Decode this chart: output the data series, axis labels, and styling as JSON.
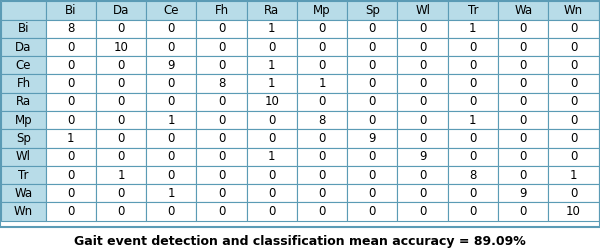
{
  "col_labels": [
    "",
    "Bi",
    "Da",
    "Ce",
    "Fh",
    "Ra",
    "Mp",
    "Sp",
    "Wl",
    "Tr",
    "Wa",
    "Wn"
  ],
  "row_labels": [
    "Bi",
    "Da",
    "Ce",
    "Fh",
    "Ra",
    "Mp",
    "Sp",
    "Wl",
    "Tr",
    "Wa",
    "Wn"
  ],
  "matrix": [
    [
      8,
      0,
      0,
      0,
      1,
      0,
      0,
      0,
      1,
      0,
      0
    ],
    [
      0,
      10,
      0,
      0,
      0,
      0,
      0,
      0,
      0,
      0,
      0
    ],
    [
      0,
      0,
      9,
      0,
      1,
      0,
      0,
      0,
      0,
      0,
      0
    ],
    [
      0,
      0,
      0,
      8,
      1,
      1,
      0,
      0,
      0,
      0,
      0
    ],
    [
      0,
      0,
      0,
      0,
      10,
      0,
      0,
      0,
      0,
      0,
      0
    ],
    [
      0,
      0,
      1,
      0,
      0,
      8,
      0,
      0,
      1,
      0,
      0
    ],
    [
      1,
      0,
      0,
      0,
      0,
      0,
      9,
      0,
      0,
      0,
      0
    ],
    [
      0,
      0,
      0,
      0,
      1,
      0,
      0,
      9,
      0,
      0,
      0
    ],
    [
      0,
      1,
      0,
      0,
      0,
      0,
      0,
      0,
      8,
      0,
      1
    ],
    [
      0,
      0,
      1,
      0,
      0,
      0,
      0,
      0,
      0,
      9,
      0
    ],
    [
      0,
      0,
      0,
      0,
      0,
      0,
      0,
      0,
      0,
      0,
      10
    ]
  ],
  "footer_text": "Gait event detection and classification mean accuracy = 89.09%",
  "header_bg": "#b8dce8",
  "row_label_bg": "#b8dce8",
  "cell_bg": "#ffffff",
  "border_color": "#5b9bb5",
  "text_color": "#000000",
  "footer_color": "#000000",
  "font_size": 8.5,
  "header_font_size": 8.5
}
